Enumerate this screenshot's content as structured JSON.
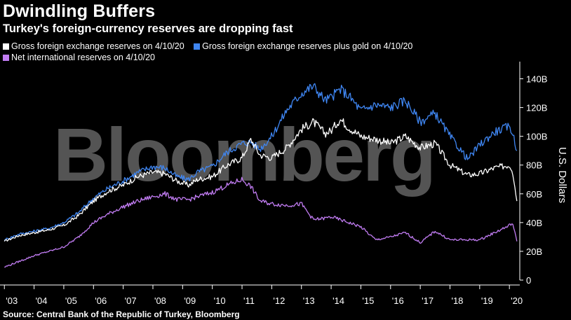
{
  "chart_data": {
    "type": "line",
    "title": "Dwindling Buffers",
    "subtitle": "Turkey's foreign-currency reserves are dropping fast",
    "ylabel": "U.S. Dollars",
    "xlabel": "",
    "ylim": [
      0,
      150
    ],
    "xlim": [
      2002.9,
      2020.35
    ],
    "y_ticks": [
      0,
      20,
      40,
      60,
      80,
      100,
      120,
      140
    ],
    "y_tick_labels": [
      "0",
      "20B",
      "40B",
      "60B",
      "80B",
      "100B",
      "120B",
      "140B"
    ],
    "x_ticks": [
      2003,
      2004,
      2005,
      2006,
      2007,
      2008,
      2009,
      2010,
      2011,
      2012,
      2013,
      2014,
      2015,
      2016,
      2017,
      2018,
      2019,
      2020
    ],
    "x_tick_labels": [
      "'03",
      "'04",
      "'05",
      "'06",
      "'07",
      "'08",
      "'09",
      "'10",
      "'11",
      "'12",
      "'13",
      "'14",
      "'15",
      "'16",
      "'17",
      "'18",
      "'19",
      "'20"
    ],
    "grid": false,
    "legend_position": "top-left",
    "watermark": "Bloomberg",
    "source": "Source: Central Bank of the Republic of Turkey, Bloomberg",
    "series": [
      {
        "name": "Gross foreign exchange reserves on 4/10/20",
        "color": "#ffffff",
        "x": [
          2003.0,
          2003.5,
          2004.0,
          2004.5,
          2005.0,
          2005.5,
          2006.0,
          2006.5,
          2007.0,
          2007.5,
          2008.0,
          2008.4,
          2008.8,
          2009.2,
          2009.5,
          2010.0,
          2010.5,
          2011.0,
          2011.3,
          2011.6,
          2012.0,
          2012.5,
          2013.0,
          2013.4,
          2013.8,
          2014.0,
          2014.3,
          2014.6,
          2015.0,
          2015.5,
          2016.0,
          2016.5,
          2017.0,
          2017.5,
          2018.0,
          2018.6,
          2019.0,
          2019.5,
          2020.0,
          2020.1,
          2020.25
        ],
        "values": [
          27,
          31,
          33,
          35,
          38,
          45,
          55,
          62,
          66,
          72,
          75,
          74,
          69,
          66,
          70,
          72,
          80,
          85,
          98,
          87,
          85,
          92,
          105,
          110,
          102,
          104,
          112,
          106,
          100,
          98,
          95,
          100,
          92,
          95,
          80,
          73,
          74,
          78,
          80,
          77,
          55
        ]
      },
      {
        "name": "Gross foreign exchange reserves plus gold on 4/10/20",
        "color": "#3f86f2",
        "x": [
          2003.0,
          2003.5,
          2004.0,
          2004.5,
          2005.0,
          2005.5,
          2006.0,
          2006.5,
          2007.0,
          2007.5,
          2008.0,
          2008.4,
          2008.8,
          2009.2,
          2009.5,
          2010.0,
          2010.5,
          2011.0,
          2011.3,
          2011.6,
          2012.0,
          2012.5,
          2013.0,
          2013.4,
          2013.8,
          2014.0,
          2014.3,
          2014.6,
          2015.0,
          2015.5,
          2016.0,
          2016.5,
          2017.0,
          2017.5,
          2018.0,
          2018.6,
          2019.0,
          2019.5,
          2020.0,
          2020.1,
          2020.25
        ],
        "values": [
          28,
          32,
          34,
          36,
          40,
          47,
          57,
          64,
          69,
          75,
          79,
          78,
          72,
          70,
          75,
          79,
          89,
          95,
          96,
          91,
          100,
          118,
          130,
          135,
          125,
          127,
          133,
          128,
          118,
          122,
          120,
          125,
          110,
          116,
          100,
          84,
          94,
          103,
          107,
          103,
          90
        ]
      },
      {
        "name": "Net international reserves on 4/10/20",
        "color": "#c17cf2",
        "x": [
          2003.0,
          2003.5,
          2004.0,
          2004.5,
          2005.0,
          2005.5,
          2006.0,
          2006.5,
          2007.0,
          2007.5,
          2008.0,
          2008.4,
          2008.8,
          2009.2,
          2009.5,
          2010.0,
          2010.5,
          2011.0,
          2011.3,
          2011.6,
          2012.0,
          2012.5,
          2013.0,
          2013.4,
          2013.8,
          2014.0,
          2014.3,
          2014.6,
          2015.0,
          2015.5,
          2016.0,
          2016.5,
          2017.0,
          2017.5,
          2018.0,
          2018.6,
          2019.0,
          2019.5,
          2020.0,
          2020.1,
          2020.25
        ],
        "values": [
          9,
          13,
          17,
          20,
          23,
          30,
          40,
          46,
          51,
          55,
          58,
          60,
          56,
          56,
          58,
          61,
          66,
          70,
          65,
          55,
          53,
          52,
          53,
          42,
          43,
          44,
          42,
          40,
          37,
          28,
          30,
          33,
          26,
          34,
          28,
          28,
          28,
          33,
          38,
          40,
          27
        ]
      }
    ]
  }
}
